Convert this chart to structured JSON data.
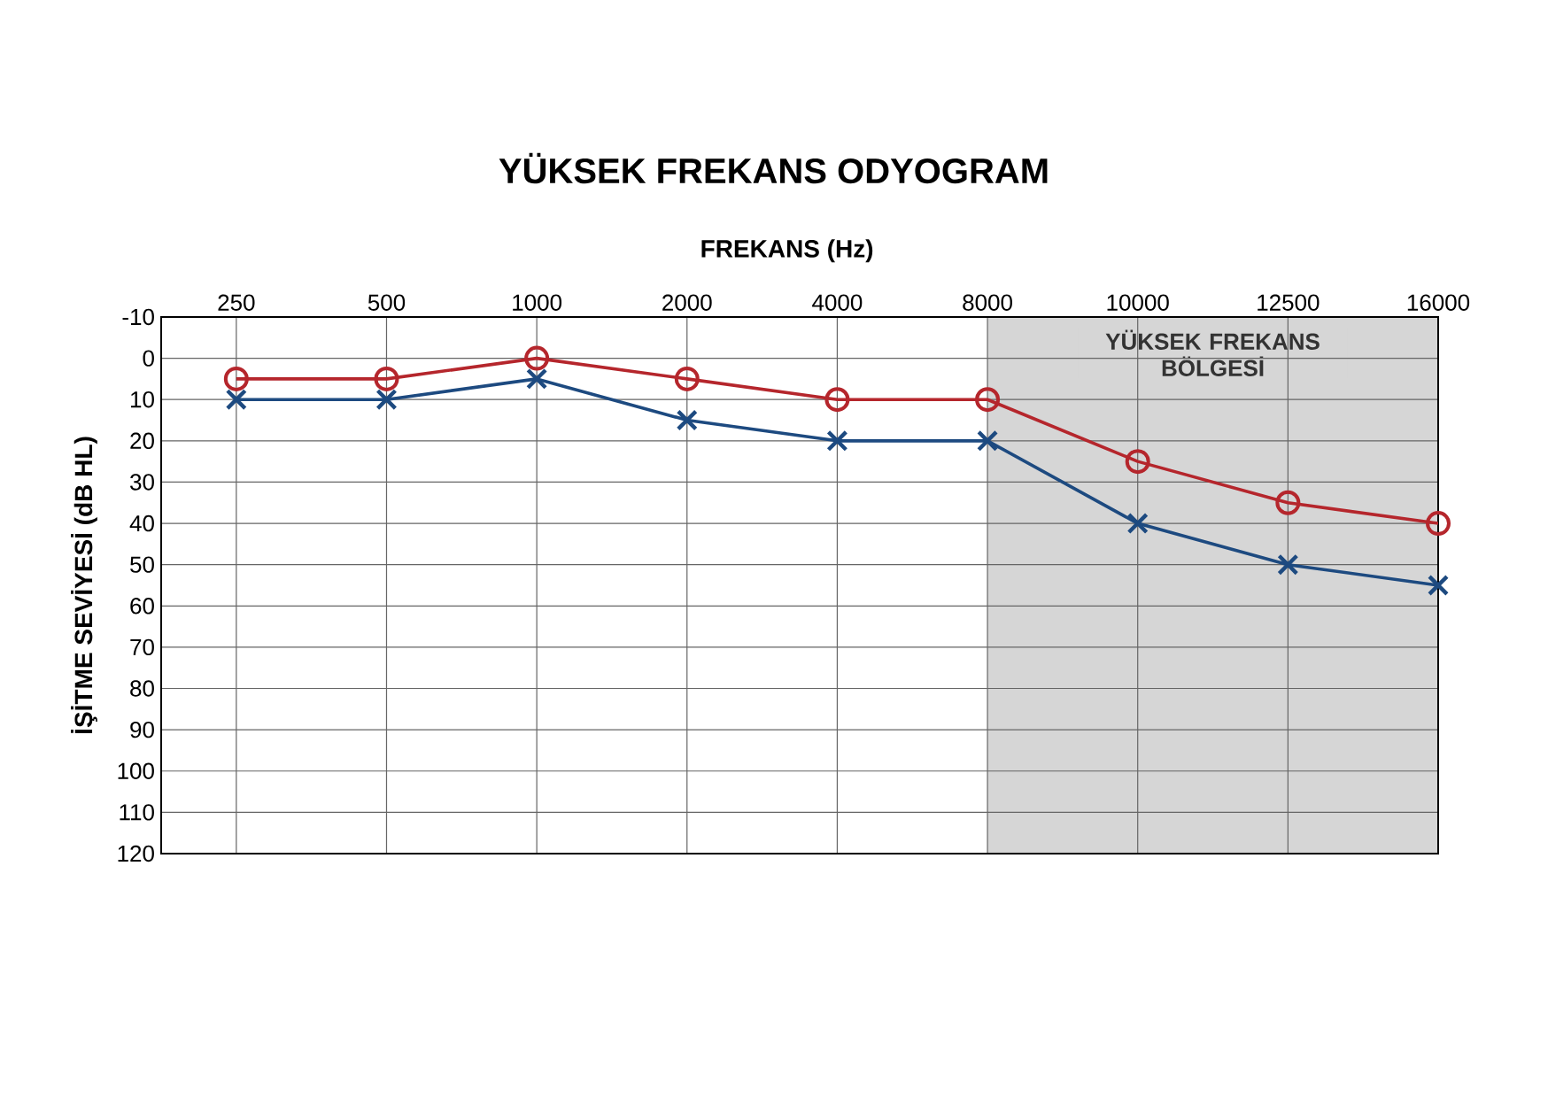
{
  "chart_data": {
    "type": "line",
    "title": "YÜKSEK FREKANS ODYOGRAM",
    "xlabel": "FREKANS (Hz)",
    "ylabel": "İŞİTME SEVİYESİ (dB HL)",
    "categories": [
      "250",
      "500",
      "1000",
      "2000",
      "4000",
      "8000",
      "10000",
      "12500",
      "16000"
    ],
    "series": [
      {
        "color": "#b5262c",
        "marker": "circle",
        "values": [
          5,
          5,
          0,
          5,
          10,
          10,
          25,
          35,
          40
        ]
      },
      {
        "color": "#1d4a80",
        "marker": "cross",
        "values": [
          10,
          10,
          5,
          15,
          20,
          20,
          40,
          50,
          55
        ]
      }
    ],
    "ylim": [
      120,
      -10
    ],
    "yticks": [
      -10,
      0,
      10,
      20,
      30,
      40,
      50,
      60,
      70,
      80,
      90,
      100,
      110,
      120
    ],
    "bands": [
      {
        "axis": "x",
        "from": "8000",
        "to": "16000",
        "label": "YÜKSEK FREKANS BÖLGESİ",
        "color": "#d6d6d6"
      }
    ],
    "grid": true
  }
}
